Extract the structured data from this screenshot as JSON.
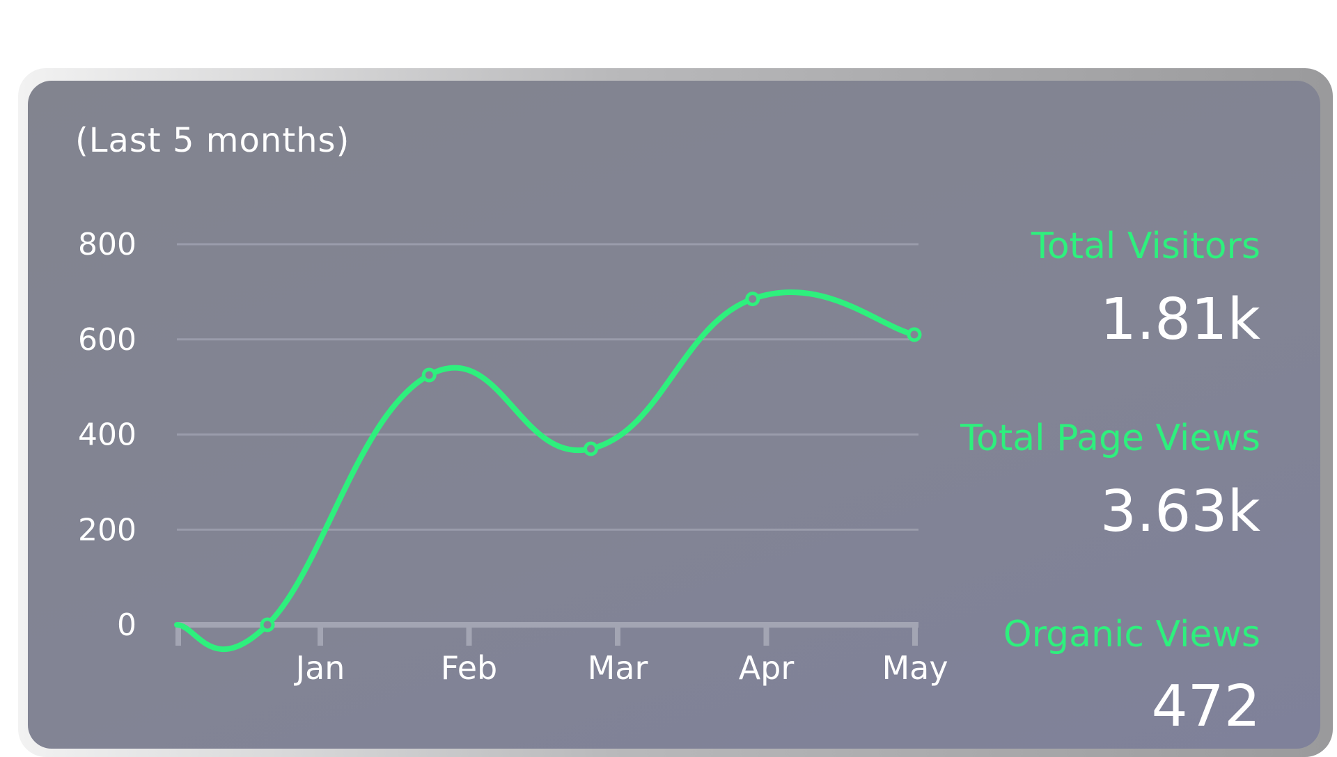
{
  "card": {
    "subtitle": "(Last 5 months)"
  },
  "stats": [
    {
      "label": "Total Visitors",
      "value": "1.81k"
    },
    {
      "label": "Total Page Views",
      "value": "3.63k"
    },
    {
      "label": "Organic Views",
      "value": "472"
    }
  ],
  "colors": {
    "line": "#2ef07d",
    "grid": "#9a9cab",
    "axis": "#a3a5b3",
    "card_bg": "#828494",
    "text": "#ffffff"
  },
  "chart_data": {
    "type": "line",
    "title": "",
    "xlabel": "",
    "ylabel": "",
    "categories": [
      "Jan",
      "Feb",
      "Mar",
      "Apr",
      "May"
    ],
    "y_ticks": [
      "0",
      "200",
      "400",
      "600",
      "800"
    ],
    "ylim": [
      0,
      800
    ],
    "grid": true,
    "series": [
      {
        "values": [
          0,
          525,
          370,
          685,
          610
        ]
      }
    ]
  }
}
